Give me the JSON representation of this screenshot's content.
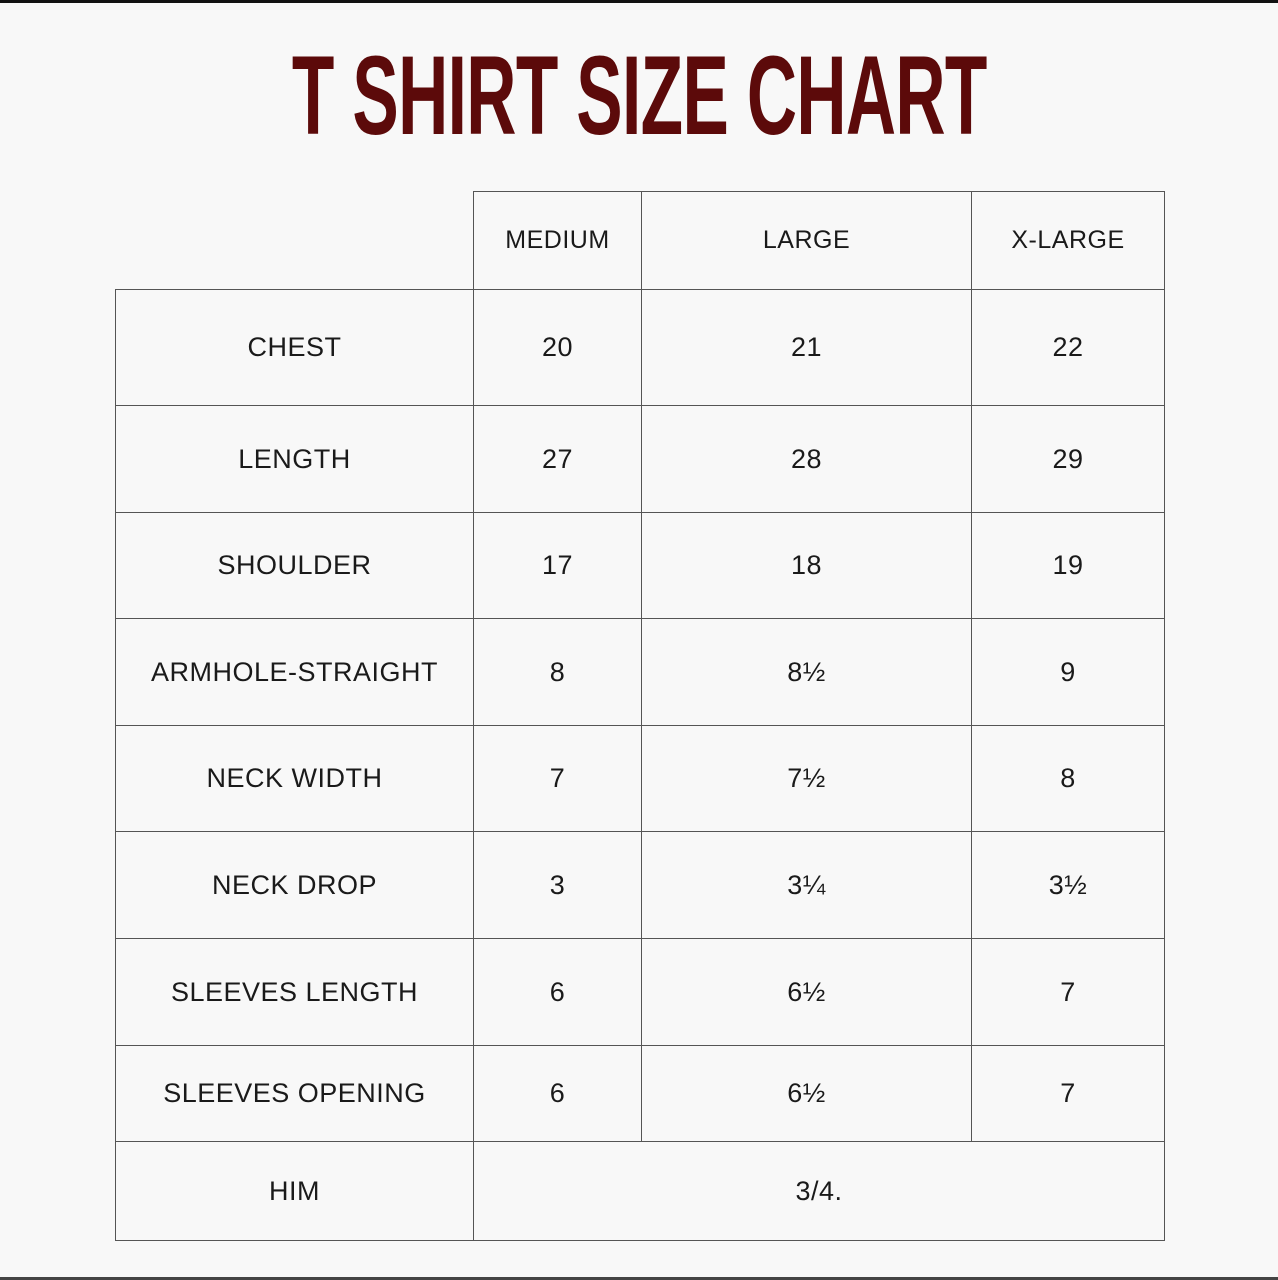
{
  "title": "T SHIRT SIZE CHART",
  "colors": {
    "title": "#5c0a0a",
    "background": "#f8f8f8",
    "border": "#555555"
  },
  "columns": [
    "MEDIUM",
    "LARGE",
    "X-LARGE"
  ],
  "rows": [
    {
      "label": "CHEST",
      "values": [
        "20",
        "21",
        "22"
      ]
    },
    {
      "label": "LENGTH",
      "values": [
        "27",
        "28",
        "29"
      ]
    },
    {
      "label": "SHOULDER",
      "values": [
        "17",
        "18",
        "19"
      ]
    },
    {
      "label": "ARMHOLE-STRAIGHT",
      "values": [
        "8",
        "8½",
        "9"
      ]
    },
    {
      "label": "NECK WIDTH",
      "values": [
        "7",
        "7½",
        "8"
      ]
    },
    {
      "label": "NECK DROP",
      "values": [
        "3",
        "3¼",
        "3½"
      ]
    },
    {
      "label": "SLEEVES LENGTH",
      "values": [
        "6",
        "6½",
        "7"
      ]
    },
    {
      "label": "SLEEVES OPENING",
      "values": [
        "6",
        "6½",
        "7"
      ]
    }
  ],
  "footer_row": {
    "label": "HIM",
    "value": "3/4."
  }
}
